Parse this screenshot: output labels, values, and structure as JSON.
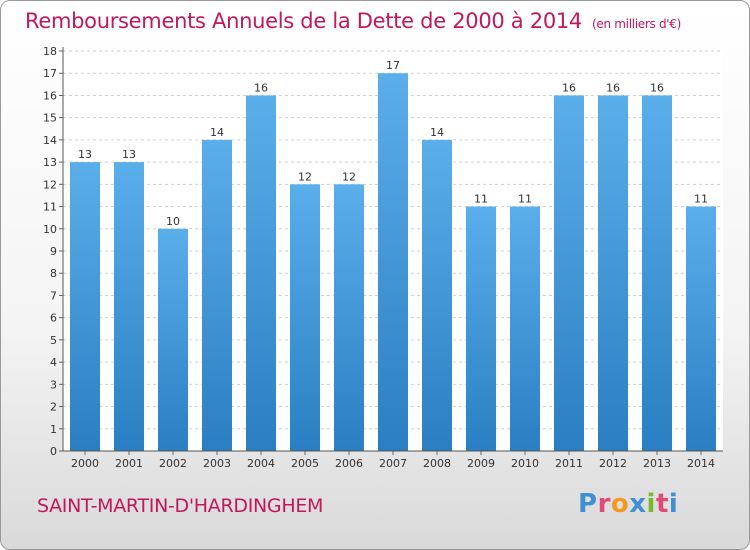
{
  "header": {
    "title": "Remboursements Annuels de la Dette de 2000 à 2014",
    "unit": "(en milliers d'€)"
  },
  "footer": {
    "commune": "SAINT-MARTIN-D'HARDINGHEM",
    "logo_letters": [
      {
        "char": "P",
        "color": "#3f8fd2"
      },
      {
        "char": "r",
        "color": "#e0497a"
      },
      {
        "char": "o",
        "color": "#f29a1f"
      },
      {
        "char": "x",
        "color": "#3f8fd2"
      },
      {
        "char": "i",
        "color": "#7cb82f"
      },
      {
        "char": "t",
        "color": "#e0497a"
      },
      {
        "char": "i",
        "color": "#3f8fd2"
      }
    ]
  },
  "chart_data": {
    "type": "bar",
    "categories": [
      "2000",
      "2001",
      "2002",
      "2003",
      "2004",
      "2005",
      "2006",
      "2007",
      "2008",
      "2009",
      "2010",
      "2011",
      "2012",
      "2013",
      "2014"
    ],
    "values": [
      13,
      13,
      10,
      14,
      16,
      12,
      12,
      17,
      14,
      11,
      11,
      16,
      16,
      16,
      11
    ],
    "ylim": [
      0,
      18
    ],
    "yticks": [
      0,
      1,
      2,
      3,
      4,
      5,
      6,
      7,
      8,
      9,
      10,
      11,
      12,
      13,
      14,
      15,
      16,
      17,
      18
    ],
    "grid": true,
    "bar_color_top": "#5aaeea",
    "bar_color_bottom": "#2a7fc2"
  }
}
